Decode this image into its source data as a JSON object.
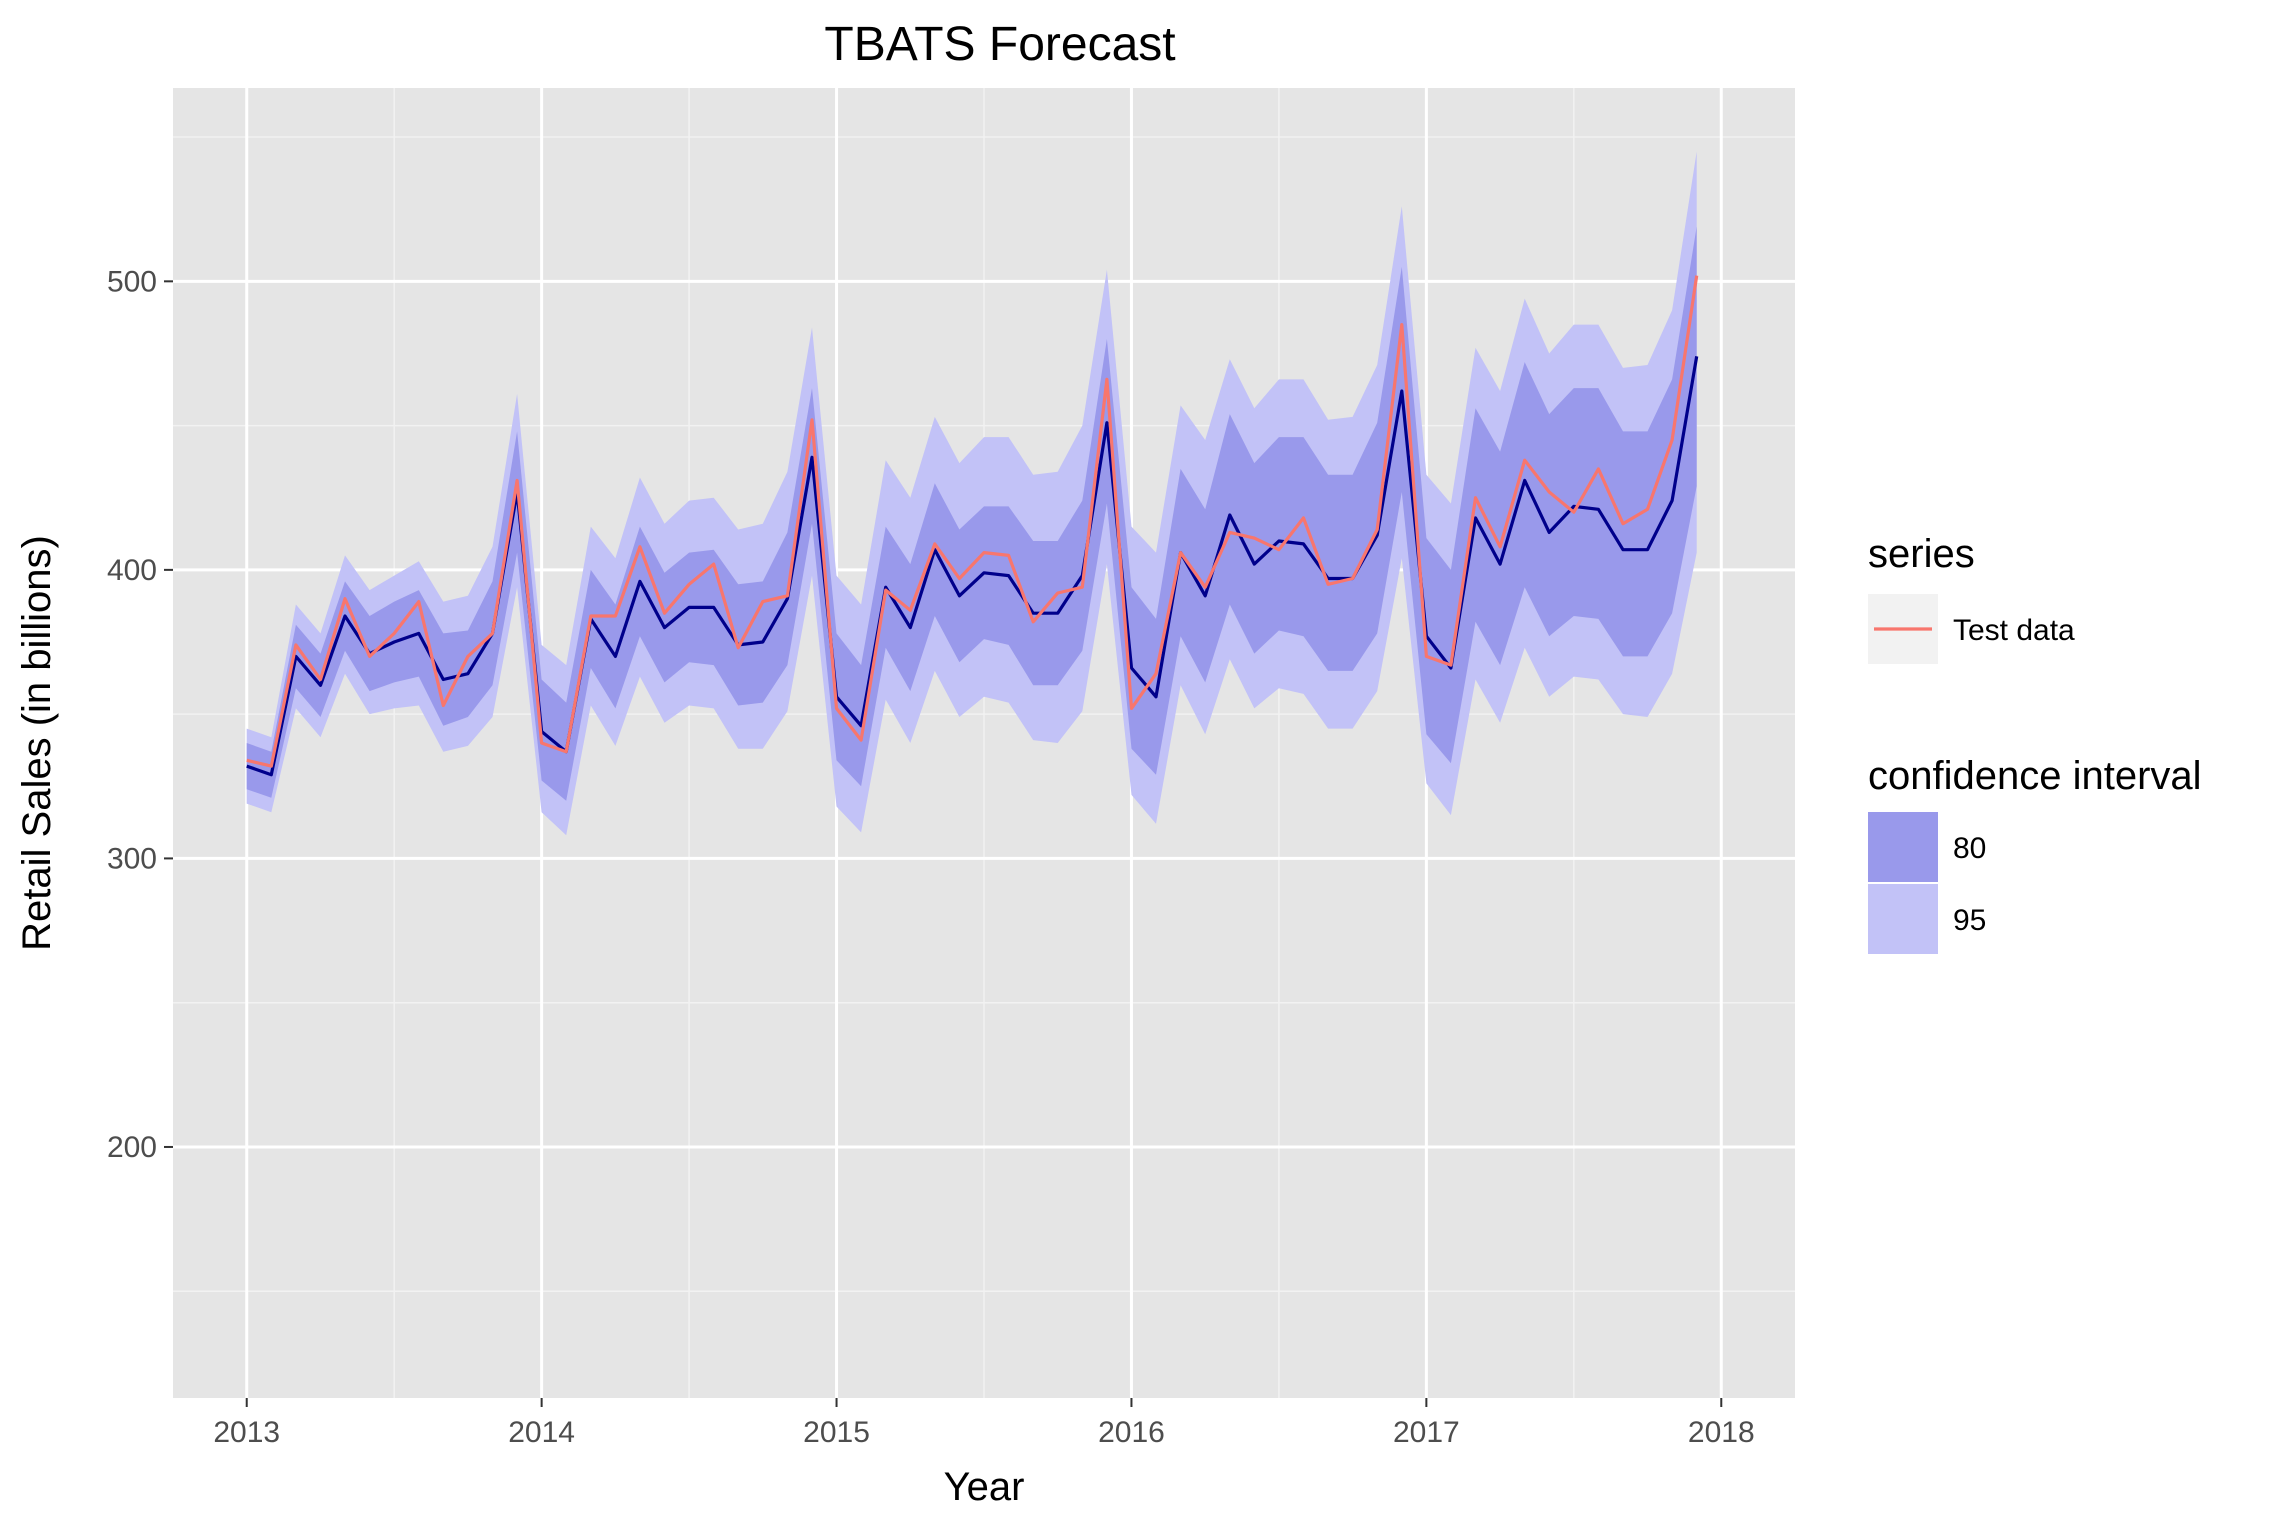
{
  "chart_data": {
    "type": "line",
    "title": "TBATS Forecast",
    "xlabel": "Year",
    "ylabel": "Retail Sales (in billions)",
    "xlim": [
      2012.75,
      2018.25
    ],
    "ylim": [
      113,
      567
    ],
    "x_ticks": [
      2013,
      2014,
      2015,
      2016,
      2017,
      2018
    ],
    "y_ticks": [
      200,
      300,
      400,
      500
    ],
    "grid": true,
    "legend_position": "right",
    "legends": [
      {
        "title": "series",
        "entries": [
          {
            "label": "Test data",
            "color": "#F8766D"
          }
        ]
      },
      {
        "title": "confidence interval",
        "entries": [
          {
            "label": "80",
            "color": "#9999EB"
          },
          {
            "label": "95",
            "color": "#C2C2F7"
          }
        ]
      }
    ],
    "x_start": 2013,
    "x_step_months": 1,
    "series": [
      {
        "name": "Test data",
        "role": "test",
        "color": "#F8766D",
        "values": [
          334,
          332,
          374,
          362,
          390,
          370,
          378,
          389,
          353,
          370,
          378,
          431,
          340,
          337,
          384,
          384,
          408,
          385,
          395,
          402,
          373,
          389,
          391,
          452,
          352,
          341,
          393,
          386,
          409,
          397,
          406,
          405,
          382,
          392,
          394,
          466,
          352,
          364,
          406,
          394,
          413,
          411,
          407,
          418,
          395,
          397,
          414,
          485,
          370,
          367,
          425,
          408,
          438,
          427,
          420,
          435,
          416,
          421,
          445,
          502
        ]
      },
      {
        "name": "",
        "role": "forecast",
        "color": "#00008B",
        "values": [
          332,
          329,
          370,
          360,
          384,
          371,
          375,
          378,
          362,
          364,
          378,
          427,
          344,
          337,
          383,
          370,
          396,
          380,
          387,
          387,
          374,
          375,
          390,
          439,
          356,
          346,
          394,
          380,
          407,
          391,
          399,
          398,
          385,
          385,
          398,
          451,
          366,
          356,
          406,
          391,
          419,
          402,
          410,
          409,
          397,
          397,
          412,
          462,
          377,
          366,
          418,
          402,
          431,
          413,
          422,
          421,
          407,
          407,
          424,
          474
        ]
      }
    ],
    "intervals": [
      {
        "level": "95",
        "color": "#C2C2F7",
        "lower": [
          319,
          316,
          352,
          342,
          364,
          350,
          352,
          353,
          337,
          339,
          349,
          394,
          316,
          308,
          353,
          339,
          363,
          347,
          353,
          352,
          338,
          338,
          351,
          398,
          318,
          309,
          355,
          340,
          365,
          349,
          356,
          354,
          341,
          340,
          351,
          402,
          322,
          312,
          360,
          343,
          369,
          352,
          359,
          357,
          345,
          345,
          358,
          404,
          326,
          315,
          362,
          347,
          373,
          356,
          363,
          362,
          350,
          349,
          364,
          406
        ]
      },
      {
        "level": "80",
        "color": "#9999EB",
        "lower": [
          324,
          321,
          359,
          349,
          372,
          358,
          361,
          363,
          346,
          349,
          360,
          406,
          327,
          320,
          366,
          352,
          377,
          361,
          368,
          367,
          353,
          354,
          367,
          416,
          334,
          325,
          373,
          358,
          384,
          368,
          376,
          374,
          360,
          360,
          372,
          423,
          338,
          329,
          377,
          361,
          388,
          371,
          379,
          377,
          365,
          365,
          378,
          427,
          343,
          333,
          382,
          367,
          394,
          377,
          384,
          383,
          370,
          370,
          385,
          429
        ],
        "upper": [
          340,
          337,
          381,
          371,
          396,
          384,
          389,
          393,
          378,
          379,
          396,
          448,
          362,
          354,
          400,
          388,
          415,
          399,
          406,
          407,
          395,
          396,
          413,
          463,
          378,
          367,
          415,
          402,
          430,
          414,
          422,
          422,
          410,
          410,
          424,
          480,
          394,
          383,
          435,
          421,
          454,
          437,
          446,
          446,
          433,
          433,
          451,
          505,
          411,
          400,
          456,
          441,
          472,
          454,
          463,
          463,
          448,
          448,
          466,
          519
        ]
      },
      {
        "level": "95",
        "color": "#C2C2F7",
        "upper": [
          345,
          342,
          388,
          378,
          405,
          393,
          398,
          403,
          389,
          391,
          408,
          461,
          374,
          367,
          415,
          404,
          432,
          416,
          424,
          425,
          414,
          416,
          434,
          484,
          398,
          388,
          438,
          425,
          453,
          437,
          446,
          446,
          433,
          434,
          450,
          504,
          415,
          406,
          457,
          445,
          473,
          456,
          466,
          466,
          452,
          453,
          471,
          526,
          433,
          423,
          477,
          462,
          494,
          475,
          485,
          485,
          470,
          471,
          490,
          545
        ]
      }
    ]
  }
}
